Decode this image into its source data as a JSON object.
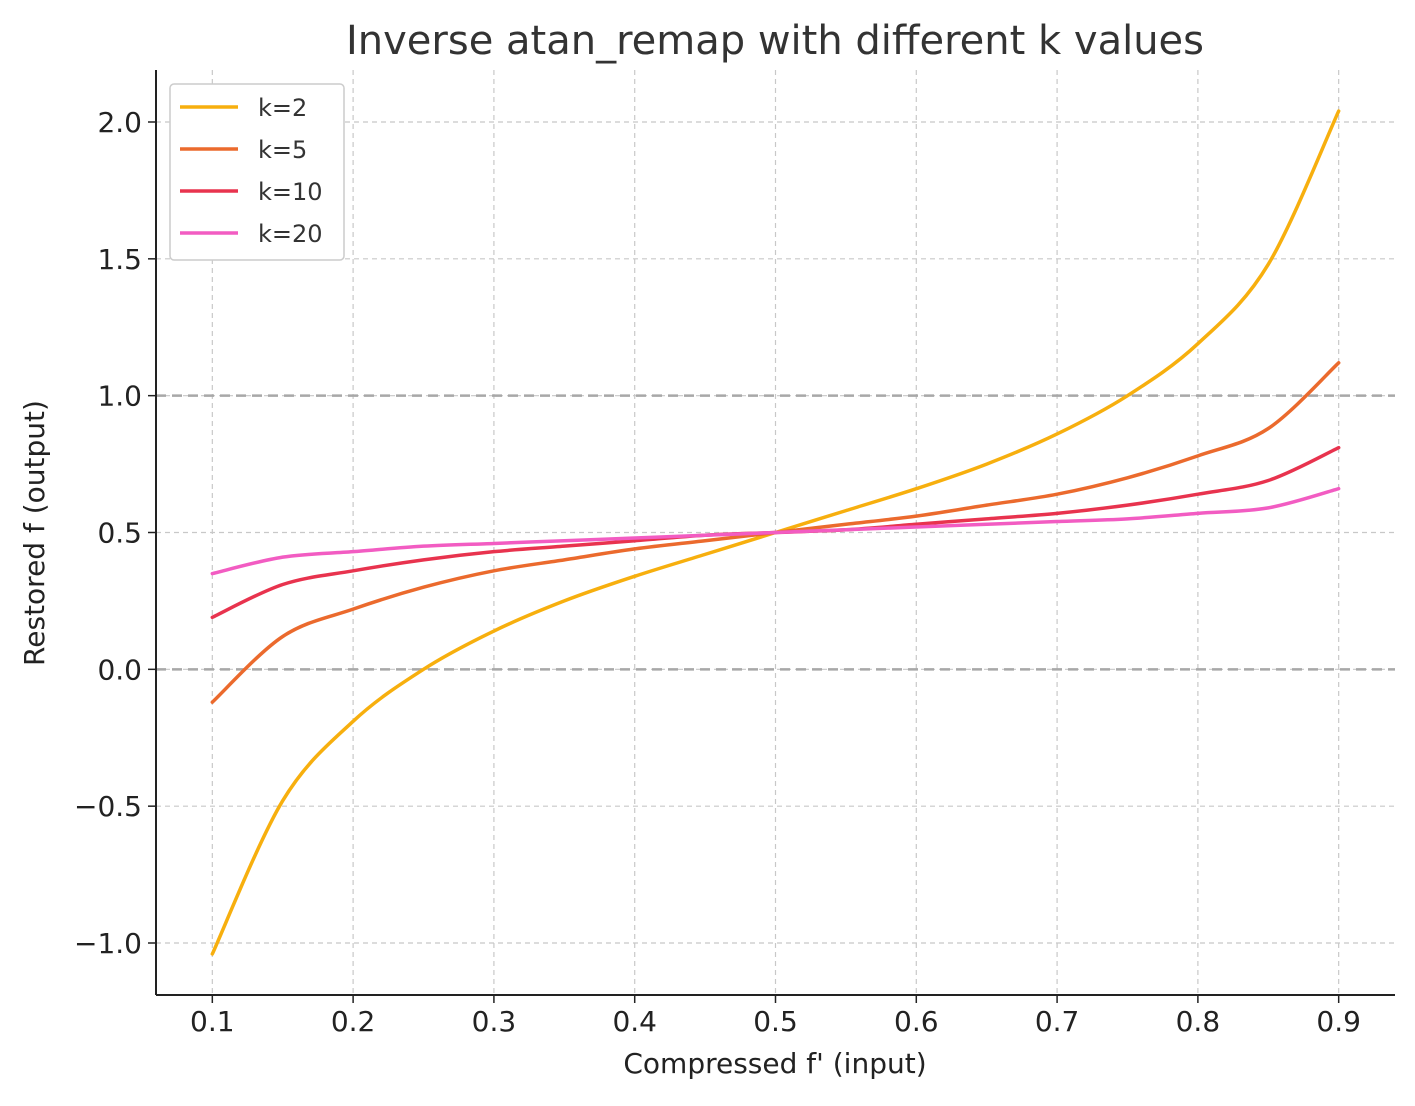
{
  "chart_data": {
    "type": "line",
    "title": "Inverse atan_remap with different k values",
    "xlabel": "Compressed f' (input)",
    "ylabel": "Restored f (output)",
    "xlim": [
      0.06,
      0.94
    ],
    "ylim": [
      -1.19,
      2.19
    ],
    "xticks": [
      0.1,
      0.2,
      0.3,
      0.4,
      0.5,
      0.6,
      0.7,
      0.8,
      0.9
    ],
    "xtick_labels": [
      "0.1",
      "0.2",
      "0.3",
      "0.4",
      "0.5",
      "0.6",
      "0.7",
      "0.8",
      "0.9"
    ],
    "yticks": [
      -1.0,
      -0.5,
      0.0,
      0.5,
      1.0,
      1.5,
      2.0
    ],
    "ytick_labels": [
      "−1.0",
      "−0.5",
      "0.0",
      "0.5",
      "1.0",
      "1.5",
      "2.0"
    ],
    "grid": true,
    "reference_lines_y": [
      0.0,
      1.0
    ],
    "legend_position": "top-left",
    "series": [
      {
        "name": "k=2",
        "color": "#F7AF0E",
        "x": [
          0.1,
          0.15,
          0.2,
          0.25,
          0.3,
          0.35,
          0.4,
          0.45,
          0.5,
          0.55,
          0.6,
          0.65,
          0.7,
          0.75,
          0.8,
          0.85,
          0.9
        ],
        "y": [
          -1.04,
          -0.48,
          -0.19,
          0.0,
          0.14,
          0.25,
          0.34,
          0.42,
          0.5,
          0.58,
          0.66,
          0.75,
          0.86,
          1.0,
          1.19,
          1.48,
          2.04
        ]
      },
      {
        "name": "k=5",
        "color": "#EB6A2D",
        "x": [
          0.1,
          0.15,
          0.2,
          0.25,
          0.3,
          0.35,
          0.4,
          0.45,
          0.5,
          0.55,
          0.6,
          0.65,
          0.7,
          0.75,
          0.8,
          0.85,
          0.9
        ],
        "y": [
          -0.12,
          0.12,
          0.22,
          0.3,
          0.36,
          0.4,
          0.44,
          0.47,
          0.5,
          0.53,
          0.56,
          0.6,
          0.64,
          0.7,
          0.78,
          0.88,
          1.12
        ]
      },
      {
        "name": "k=10",
        "color": "#E8334E",
        "x": [
          0.1,
          0.15,
          0.2,
          0.25,
          0.3,
          0.35,
          0.4,
          0.45,
          0.5,
          0.55,
          0.6,
          0.65,
          0.7,
          0.75,
          0.8,
          0.85,
          0.9
        ],
        "y": [
          0.19,
          0.31,
          0.36,
          0.4,
          0.43,
          0.45,
          0.47,
          0.49,
          0.5,
          0.51,
          0.53,
          0.55,
          0.57,
          0.6,
          0.64,
          0.69,
          0.81
        ]
      },
      {
        "name": "k=20",
        "color": "#F25CC2",
        "x": [
          0.1,
          0.15,
          0.2,
          0.25,
          0.3,
          0.35,
          0.4,
          0.45,
          0.5,
          0.55,
          0.6,
          0.65,
          0.7,
          0.75,
          0.8,
          0.85,
          0.9
        ],
        "y": [
          0.35,
          0.41,
          0.43,
          0.45,
          0.46,
          0.47,
          0.48,
          0.49,
          0.5,
          0.51,
          0.52,
          0.53,
          0.54,
          0.55,
          0.57,
          0.59,
          0.66
        ]
      }
    ]
  }
}
